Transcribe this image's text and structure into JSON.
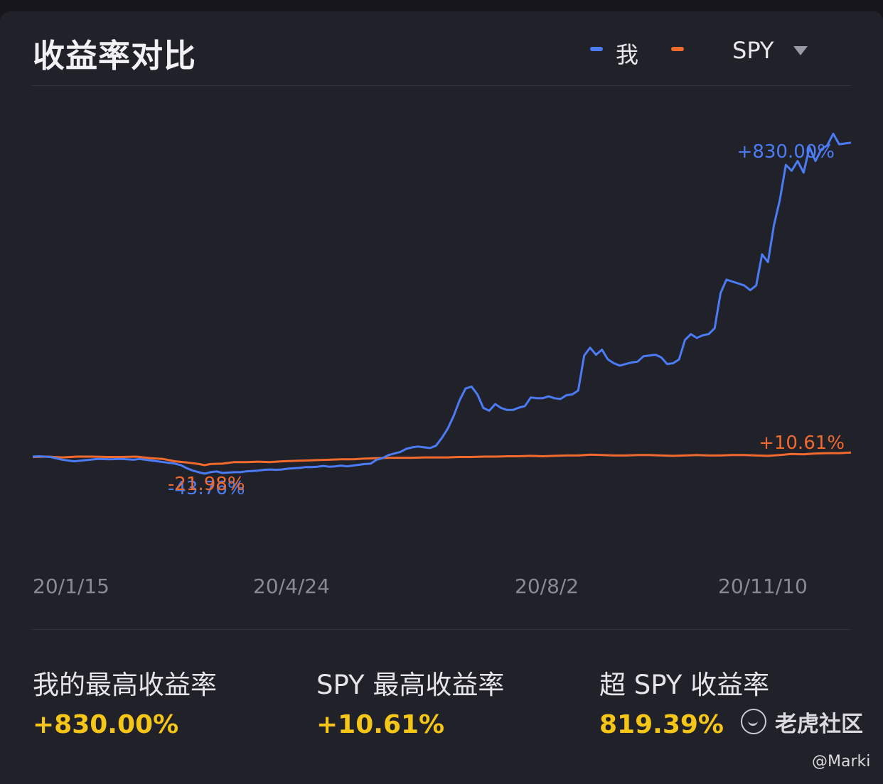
{
  "header": {
    "title": "收益率对比",
    "legend": {
      "me_label": "我",
      "benchmark_selected": "SPY"
    }
  },
  "colors": {
    "me": "#4b7bf5",
    "benchmark": "#f06a2e",
    "highlight": "#f5c518"
  },
  "chart_data": {
    "type": "line",
    "x_ticks": [
      "20/1/15",
      "20/4/24",
      "20/8/2",
      "20/11/10"
    ],
    "ylabel": "",
    "ylim": [
      -100,
      900
    ],
    "series": [
      {
        "name": "我",
        "color": "#4b7bf5",
        "points": [
          [
            0,
            0
          ],
          [
            2,
            1
          ],
          [
            6,
            -1
          ],
          [
            10,
            -8
          ],
          [
            14,
            -12
          ],
          [
            18,
            -9
          ],
          [
            22,
            -6
          ],
          [
            26,
            -7
          ],
          [
            30,
            -6
          ],
          [
            34,
            -8
          ],
          [
            36,
            -6
          ],
          [
            40,
            -10
          ],
          [
            44,
            -14
          ],
          [
            48,
            -18
          ],
          [
            50,
            -22
          ],
          [
            52,
            -30
          ],
          [
            54,
            -36
          ],
          [
            56,
            -40
          ],
          [
            58,
            -43.76
          ],
          [
            60,
            -40
          ],
          [
            62,
            -38
          ],
          [
            64,
            -42
          ],
          [
            66,
            -41
          ],
          [
            68,
            -40
          ],
          [
            70,
            -40
          ],
          [
            72,
            -38
          ],
          [
            74,
            -37
          ],
          [
            76,
            -36
          ],
          [
            78,
            -34
          ],
          [
            80,
            -33
          ],
          [
            82,
            -34
          ],
          [
            84,
            -33
          ],
          [
            86,
            -31
          ],
          [
            88,
            -30
          ],
          [
            90,
            -29
          ],
          [
            92,
            -27
          ],
          [
            94,
            -27
          ],
          [
            96,
            -26
          ],
          [
            98,
            -24
          ],
          [
            100,
            -26
          ],
          [
            102,
            -25
          ],
          [
            104,
            -23
          ],
          [
            106,
            -25
          ],
          [
            108,
            -23
          ],
          [
            110,
            -21
          ],
          [
            112,
            -19
          ],
          [
            114,
            -18
          ],
          [
            116,
            -8
          ],
          [
            118,
            -4
          ],
          [
            120,
            4
          ],
          [
            122,
            8
          ],
          [
            124,
            12
          ],
          [
            126,
            20
          ],
          [
            128,
            24
          ],
          [
            130,
            26
          ],
          [
            132,
            24
          ],
          [
            134,
            22
          ],
          [
            136,
            28
          ],
          [
            138,
            48
          ],
          [
            140,
            72
          ],
          [
            142,
            105
          ],
          [
            144,
            145
          ],
          [
            146,
            175
          ],
          [
            148,
            180
          ],
          [
            150,
            160
          ],
          [
            152,
            125
          ],
          [
            154,
            118
          ],
          [
            156,
            135
          ],
          [
            158,
            125
          ],
          [
            160,
            120
          ],
          [
            162,
            120
          ],
          [
            164,
            126
          ],
          [
            166,
            130
          ],
          [
            168,
            152
          ],
          [
            170,
            150
          ],
          [
            172,
            150
          ],
          [
            174,
            155
          ],
          [
            176,
            150
          ],
          [
            178,
            148
          ],
          [
            180,
            158
          ],
          [
            182,
            160
          ],
          [
            184,
            170
          ],
          [
            186,
            260
          ],
          [
            188,
            280
          ],
          [
            190,
            262
          ],
          [
            192,
            275
          ],
          [
            194,
            250
          ],
          [
            196,
            240
          ],
          [
            198,
            234
          ],
          [
            200,
            238
          ],
          [
            202,
            242
          ],
          [
            204,
            244
          ],
          [
            206,
            258
          ],
          [
            208,
            260
          ],
          [
            210,
            262
          ],
          [
            212,
            255
          ],
          [
            214,
            238
          ],
          [
            216,
            240
          ],
          [
            218,
            250
          ],
          [
            220,
            300
          ],
          [
            222,
            315
          ],
          [
            224,
            305
          ],
          [
            226,
            312
          ],
          [
            228,
            315
          ],
          [
            230,
            330
          ],
          [
            232,
            420
          ],
          [
            234,
            455
          ],
          [
            236,
            450
          ],
          [
            238,
            445
          ],
          [
            240,
            440
          ],
          [
            242,
            428
          ],
          [
            244,
            440
          ],
          [
            246,
            520
          ],
          [
            248,
            500
          ],
          [
            250,
            595
          ],
          [
            252,
            660
          ],
          [
            254,
            750
          ],
          [
            256,
            735
          ],
          [
            258,
            760
          ],
          [
            260,
            730
          ],
          [
            262,
            795
          ],
          [
            264,
            760
          ],
          [
            266,
            790
          ],
          [
            268,
            800
          ],
          [
            270,
            830
          ],
          [
            272,
            803
          ],
          [
            274,
            805
          ],
          [
            276,
            807
          ]
        ]
      },
      {
        "name": "SPY",
        "color": "#f06a2e",
        "points": [
          [
            0,
            -1
          ],
          [
            5,
            0
          ],
          [
            10,
            -2
          ],
          [
            15,
            0
          ],
          [
            20,
            0
          ],
          [
            25,
            -1
          ],
          [
            30,
            -1
          ],
          [
            35,
            0
          ],
          [
            40,
            -4
          ],
          [
            44,
            -6
          ],
          [
            48,
            -12
          ],
          [
            52,
            -15
          ],
          [
            56,
            -19
          ],
          [
            58,
            -21.98
          ],
          [
            60,
            -19
          ],
          [
            64,
            -18
          ],
          [
            68,
            -14
          ],
          [
            72,
            -14
          ],
          [
            76,
            -13
          ],
          [
            80,
            -14
          ],
          [
            84,
            -12
          ],
          [
            88,
            -11
          ],
          [
            92,
            -10
          ],
          [
            96,
            -9
          ],
          [
            100,
            -8
          ],
          [
            104,
            -7
          ],
          [
            108,
            -7
          ],
          [
            112,
            -5
          ],
          [
            116,
            -4
          ],
          [
            120,
            -3
          ],
          [
            124,
            -3
          ],
          [
            128,
            -3
          ],
          [
            132,
            -2
          ],
          [
            136,
            -2
          ],
          [
            140,
            -2
          ],
          [
            144,
            -1
          ],
          [
            148,
            -1
          ],
          [
            152,
            0
          ],
          [
            156,
            0
          ],
          [
            160,
            1
          ],
          [
            164,
            1
          ],
          [
            168,
            2
          ],
          [
            172,
            1
          ],
          [
            176,
            2
          ],
          [
            180,
            3
          ],
          [
            184,
            3
          ],
          [
            188,
            5
          ],
          [
            192,
            4
          ],
          [
            196,
            3
          ],
          [
            200,
            3
          ],
          [
            204,
            4
          ],
          [
            208,
            4
          ],
          [
            212,
            3
          ],
          [
            216,
            2
          ],
          [
            220,
            3
          ],
          [
            224,
            4
          ],
          [
            228,
            3
          ],
          [
            232,
            3
          ],
          [
            236,
            4
          ],
          [
            240,
            4
          ],
          [
            244,
            3
          ],
          [
            248,
            2
          ],
          [
            252,
            4
          ],
          [
            256,
            7
          ],
          [
            260,
            6
          ],
          [
            264,
            8
          ],
          [
            268,
            9
          ],
          [
            272,
            9
          ],
          [
            276,
            10.61
          ]
        ]
      }
    ],
    "annotations": [
      {
        "series": "我",
        "x": 270,
        "y": 830,
        "text": "+830.00%"
      },
      {
        "series": "我",
        "x": 58,
        "y": -43.76,
        "text": "-43.76%"
      },
      {
        "series": "SPY",
        "x": 58,
        "y": -21.98,
        "text": "-21.98%"
      },
      {
        "series": "SPY",
        "x": 276,
        "y": 10.61,
        "text": "+10.61%"
      }
    ]
  },
  "stats": [
    {
      "label": "我的最高收益率",
      "value": "+830.00%"
    },
    {
      "label": "SPY 最高收益率",
      "value": "+10.61%"
    },
    {
      "label": "超 SPY 收益率",
      "value": "819.39%"
    }
  ],
  "watermark": {
    "brand": "老虎社区",
    "icon": "tiger-community-icon",
    "credit": "@Marki"
  }
}
